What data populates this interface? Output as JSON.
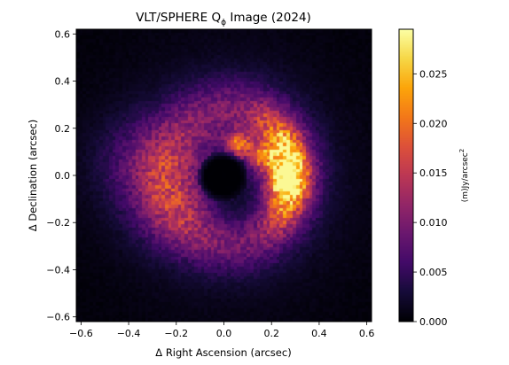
{
  "chart_data": {
    "type": "heatmap",
    "title": "VLT/SPHERE Q",
    "title_subscript": "ϕ",
    "title_suffix": " Image (2024)",
    "xlabel": "Δ Right Ascension (arcsec)",
    "ylabel": "Δ Declination (arcsec)",
    "xlim": [
      -0.62,
      0.62
    ],
    "ylim": [
      -0.62,
      0.62
    ],
    "xticks": [
      {
        "value": -0.6,
        "label": "−0.6"
      },
      {
        "value": -0.4,
        "label": "−0.4"
      },
      {
        "value": -0.2,
        "label": "−0.2"
      },
      {
        "value": 0.0,
        "label": "0.0"
      },
      {
        "value": 0.2,
        "label": "0.2"
      },
      {
        "value": 0.4,
        "label": "0.4"
      },
      {
        "value": 0.6,
        "label": "0.6"
      }
    ],
    "yticks": [
      {
        "value": 0.6,
        "label": "0.6"
      },
      {
        "value": 0.4,
        "label": "0.4"
      },
      {
        "value": 0.2,
        "label": "0.2"
      },
      {
        "value": 0.0,
        "label": "0.0"
      },
      {
        "value": -0.2,
        "label": "−0.2"
      },
      {
        "value": -0.4,
        "label": "−0.4"
      },
      {
        "value": -0.6,
        "label": "−0.6"
      }
    ],
    "colormap": "inferno",
    "colorbar": {
      "label": "(m)Jy/arcsec",
      "label_superscript": "2",
      "range": [
        0.0,
        0.0295
      ],
      "ticks": [
        {
          "value": 0.0,
          "label": "0.000"
        },
        {
          "value": 0.005,
          "label": "0.005"
        },
        {
          "value": 0.01,
          "label": "0.010"
        },
        {
          "value": 0.015,
          "label": "0.015"
        },
        {
          "value": 0.02,
          "label": "0.020"
        },
        {
          "value": 0.025,
          "label": "0.025"
        }
      ]
    },
    "image_features": {
      "central_mask_radius": 0.075,
      "disk_peak_value": 0.029,
      "bright_side": "east-right"
    },
    "grid": false
  }
}
